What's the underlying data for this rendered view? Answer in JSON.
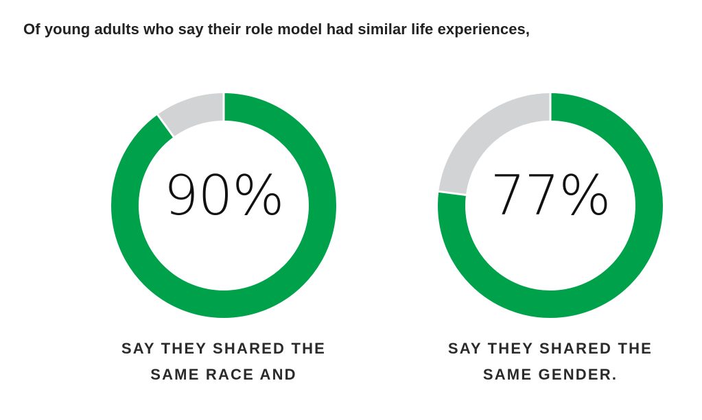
{
  "headline": "Of young adults who say their role model had similar life experiences,",
  "colors": {
    "filled": "#00A14B",
    "remainder": "#D1D3D4"
  },
  "chart_data": [
    {
      "type": "pie",
      "style": "donut",
      "value_percent": 90,
      "slices": [
        {
          "label": "shared",
          "value": 90
        },
        {
          "label": "remainder",
          "value": 10
        }
      ],
      "center_label": "90%",
      "caption_lines": [
        "SAY THEY SHARED THE",
        "SAME RACE AND"
      ]
    },
    {
      "type": "pie",
      "style": "donut",
      "value_percent": 77,
      "slices": [
        {
          "label": "shared",
          "value": 77
        },
        {
          "label": "remainder",
          "value": 23
        }
      ],
      "center_label": "77%",
      "caption_lines": [
        "SAY THEY SHARED THE",
        "SAME GENDER."
      ]
    }
  ]
}
